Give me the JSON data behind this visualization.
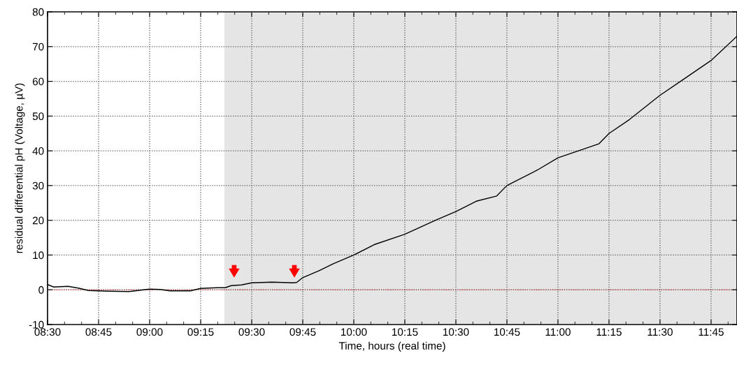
{
  "chart_data": {
    "type": "line",
    "xlabel": "Time, hours (real time)",
    "ylabel": "residual differential pH (Voltage, µV)",
    "x": [
      8.5,
      8.53,
      8.6,
      8.65,
      8.7,
      8.8,
      8.9,
      9.0,
      9.05,
      9.1,
      9.2,
      9.25,
      9.33,
      9.37,
      9.4,
      9.45,
      9.5,
      9.6,
      9.7,
      9.72,
      9.75,
      9.83,
      9.9,
      10.0,
      10.1,
      10.25,
      10.4,
      10.5,
      10.6,
      10.7,
      10.75,
      10.9,
      11.0,
      11.1,
      11.2,
      11.25,
      11.35,
      11.5,
      11.6,
      11.75,
      11.877
    ],
    "series": [
      {
        "color": "#000000",
        "values": [
          1.5,
          0.8,
          1.0,
          0.5,
          -0.2,
          -0.4,
          -0.5,
          0.2,
          0.1,
          -0.3,
          -0.3,
          0.4,
          0.6,
          0.6,
          1.2,
          1.4,
          2.0,
          2.2,
          2.0,
          2.1,
          3.5,
          5.5,
          7.5,
          10,
          13,
          16,
          20,
          22.5,
          25.5,
          27,
          30,
          34.5,
          38,
          40,
          42,
          45,
          49,
          56,
          60,
          66,
          73
        ]
      }
    ],
    "xlim": [
      8.5,
      11.877
    ],
    "xticks": [
      {
        "value": 8.5,
        "label": "08:30"
      },
      {
        "value": 8.75,
        "label": "08:45"
      },
      {
        "value": 9.0,
        "label": "09:00"
      },
      {
        "value": 9.25,
        "label": "09:15"
      },
      {
        "value": 9.5,
        "label": "09:30"
      },
      {
        "value": 9.75,
        "label": "09:45"
      },
      {
        "value": 10.0,
        "label": "10:00"
      },
      {
        "value": 10.25,
        "label": "10:15"
      },
      {
        "value": 10.5,
        "label": "10:30"
      },
      {
        "value": 10.75,
        "label": "10:45"
      },
      {
        "value": 11.0,
        "label": "11:00"
      },
      {
        "value": 11.25,
        "label": "11:15"
      },
      {
        "value": 11.5,
        "label": "11:30"
      },
      {
        "value": 11.75,
        "label": "11:45"
      }
    ],
    "ylim": [
      -10,
      80
    ],
    "yticks": [
      -10,
      0,
      10,
      20,
      30,
      40,
      50,
      60,
      70,
      80
    ],
    "ref_lines": [
      {
        "axis": "y",
        "value": 0,
        "color": "#ff0000",
        "line_style": "dotted"
      }
    ],
    "bands": [
      {
        "axis": "x",
        "from": 9.366,
        "to": 11.877,
        "color": "#e5e5e5"
      }
    ],
    "grid": true,
    "marker": "none",
    "line_style": "solid",
    "legend": false
  }
}
